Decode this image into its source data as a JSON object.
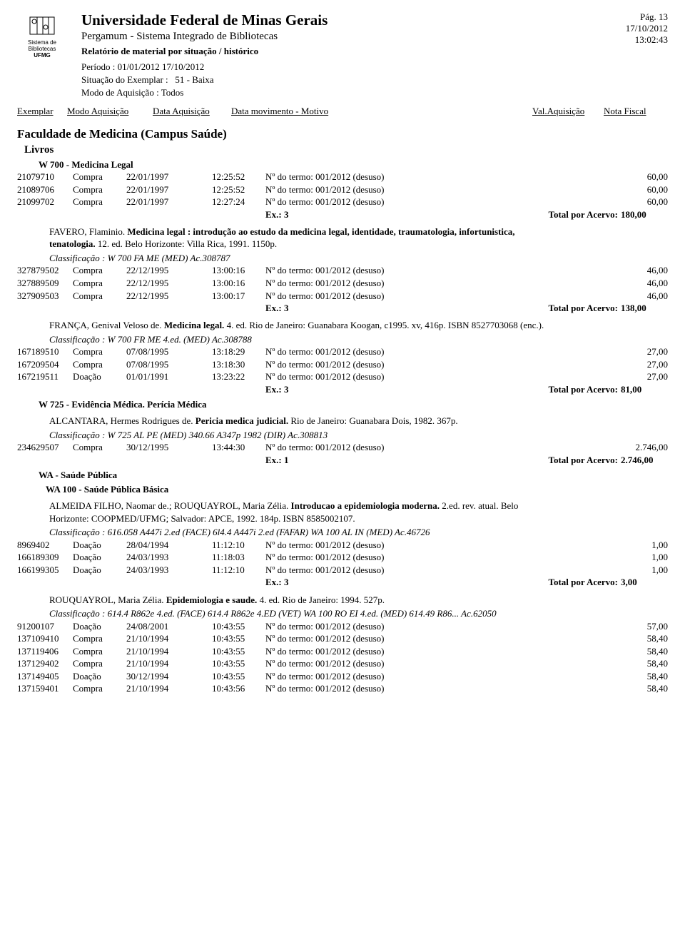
{
  "header": {
    "logo_text1": "Sistema de",
    "logo_text2": "Bibliotecas",
    "logo_text3": "UFMG",
    "institution": "Universidade Federal de Minas Gerais",
    "system": "Pergamum - Sistema Integrado de Bibliotecas",
    "report_title": "Relatório de material por situação / histórico",
    "period_label": "Período :",
    "period_value": "01/01/2012  17/10/2012",
    "situation_label": "Situação do Exemplar :",
    "situation_value": "51 - Baixa",
    "mode_label": "Modo de Aquisição :",
    "mode_value": "Todos",
    "page": "Pág. 13",
    "date": "17/10/2012",
    "time": "13:02:43"
  },
  "columns": {
    "exemplar": "Exemplar",
    "modo": "Modo Aquisição",
    "data_aq": "Data Aquisição",
    "motivo": "Data movimento - Motivo",
    "val": "Val.Aquisição",
    "nf": "Nota Fiscal"
  },
  "faculty": "Faculdade de Medicina (Campus Saúde)",
  "type_section": "Livros",
  "class1": {
    "heading": "W 700 - Medicina Legal",
    "rows": [
      {
        "ex": "21079710",
        "modo": "Compra",
        "data": "22/01/1997",
        "time": "12:25:52",
        "motivo": "Nº do termo: 001/2012 (desuso)",
        "val": "60,00"
      },
      {
        "ex": "21089706",
        "modo": "Compra",
        "data": "22/01/1997",
        "time": "12:25:52",
        "motivo": "Nº do termo: 001/2012 (desuso)",
        "val": "60,00"
      },
      {
        "ex": "21099702",
        "modo": "Compra",
        "data": "22/01/1997",
        "time": "12:27:24",
        "motivo": "Nº do termo: 001/2012 (desuso)",
        "val": "60,00"
      }
    ],
    "total_ex": "Ex.: 3",
    "total_label": "Total por Acervo:",
    "total_val": "180,00",
    "book_author": "FAVERO, Flaminio. ",
    "book_title": "Medicina legal : introdução ao estudo da medicina legal, identidade, traumatologia, infortunistica, tenatologia.",
    "book_rest": "    12. ed. Belo Horizonte: Villa Rica, 1991. 1150p.",
    "classif": "Classificação : W 700 FA ME (MED)  Ac.308787",
    "rows2": [
      {
        "ex": "327879502",
        "modo": "Compra",
        "data": "22/12/1995",
        "time": "13:00:16",
        "motivo": "Nº do termo: 001/2012 (desuso)",
        "val": "46,00"
      },
      {
        "ex": "327889509",
        "modo": "Compra",
        "data": "22/12/1995",
        "time": "13:00:16",
        "motivo": "Nº do termo: 001/2012 (desuso)",
        "val": "46,00"
      },
      {
        "ex": "327909503",
        "modo": "Compra",
        "data": "22/12/1995",
        "time": "13:00:17",
        "motivo": "Nº do termo: 001/2012 (desuso)",
        "val": "46,00"
      }
    ],
    "total2_ex": "Ex.: 3",
    "total2_label": "Total por Acervo:",
    "total2_val": "138,00",
    "book2_author": "FRANÇA, Genival Veloso de. ",
    "book2_title": "Medicina legal.",
    "book2_rest": "    4. ed. Rio de Janeiro: Guanabara Koogan, c1995. xv, 416p.    ISBN 8527703068 (enc.).",
    "classif2": "Classificação : W 700 FR ME 4.ed. (MED)  Ac.308788",
    "rows3": [
      {
        "ex": "167189510",
        "modo": "Compra",
        "data": "07/08/1995",
        "time": "13:18:29",
        "motivo": "Nº do termo: 001/2012 (desuso)",
        "val": "27,00"
      },
      {
        "ex": "167209504",
        "modo": "Compra",
        "data": "07/08/1995",
        "time": "13:18:30",
        "motivo": "Nº do termo: 001/2012 (desuso)",
        "val": "27,00"
      },
      {
        "ex": "167219511",
        "modo": "Doação",
        "data": "01/01/1991",
        "time": "13:23:22",
        "motivo": "Nº do termo: 001/2012 (desuso)",
        "val": "27,00"
      }
    ],
    "total3_ex": "Ex.: 3",
    "total3_label": "Total por Acervo:",
    "total3_val": "81,00"
  },
  "class2": {
    "heading": "W 725 - Evidência Médica. Perícia Médica",
    "book_author": "ALCANTARA, Hermes Rodrigues de. ",
    "book_title": "Pericia medica judicial.",
    "book_rest": "      Rio de Janeiro: Guanabara Dois, 1982. 367p.",
    "classif": "Classificação : W 725 AL PE (MED) 340.66 A347p 1982 (DIR)  Ac.308813",
    "rows": [
      {
        "ex": "234629507",
        "modo": "Compra",
        "data": "30/12/1995",
        "time": "13:44:30",
        "motivo": "Nº do termo: 001/2012 (desuso)",
        "val": "2.746,00"
      }
    ],
    "total_ex": "Ex.: 1",
    "total_label": "Total por Acervo:",
    "total_val": "2.746,00"
  },
  "class3": {
    "heading": "WA - Saúde Pública",
    "sub_heading": "WA 100 - Saúde Pública Básica",
    "book_author": "ALMEIDA FILHO, Naomar de.; ROUQUAYROL, Maria Zélia. ",
    "book_title": "Introducao a epidemiologia moderna.",
    "book_rest": "    2.ed. rev. atual. Belo Horizonte: COOPMED/UFMG; Salvador: APCE, 1992. 184p.    ISBN 8585002107.",
    "classif": "Classificação : 616.058 A447i 2.ed (FACE) 6l4.4 A447i 2.ed (FAFAR) WA 100 AL IN (MED)  Ac.46726",
    "rows": [
      {
        "ex": "8969402",
        "modo": "Doação",
        "data": "28/04/1994",
        "time": "11:12:10",
        "motivo": "Nº do termo: 001/2012 (desuso)",
        "val": "1,00"
      },
      {
        "ex": "166189309",
        "modo": "Doação",
        "data": "24/03/1993",
        "time": "11:18:03",
        "motivo": "Nº do termo: 001/2012 (desuso)",
        "val": "1,00"
      },
      {
        "ex": "166199305",
        "modo": "Doação",
        "data": "24/03/1993",
        "time": "11:12:10",
        "motivo": "Nº do termo: 001/2012 (desuso)",
        "val": "1,00"
      }
    ],
    "total_ex": "Ex.: 3",
    "total_label": "Total por Acervo:",
    "total_val": "3,00",
    "book2_author": "ROUQUAYROL, Maria Zélia. ",
    "book2_title": "Epidemiologia e saude.",
    "book2_rest": "    4. ed. Rio de Janeiro: 1994. 527p.",
    "classif2": "Classificação : 614.4 R862e 4.ed. (FACE) 614.4 R862e 4.ED (VET) WA 100 RO EI 4.ed. (MED) 614.49 R86... Ac.62050",
    "rows2": [
      {
        "ex": "91200107",
        "modo": "Doação",
        "data": "24/08/2001",
        "time": "10:43:55",
        "motivo": "Nº do termo: 001/2012 (desuso)",
        "val": "57,00"
      },
      {
        "ex": "137109410",
        "modo": "Compra",
        "data": "21/10/1994",
        "time": "10:43:55",
        "motivo": "Nº do termo: 001/2012 (desuso)",
        "val": "58,40"
      },
      {
        "ex": "137119406",
        "modo": "Compra",
        "data": "21/10/1994",
        "time": "10:43:55",
        "motivo": "Nº do termo: 001/2012 (desuso)",
        "val": "58,40"
      },
      {
        "ex": "137129402",
        "modo": "Compra",
        "data": "21/10/1994",
        "time": "10:43:55",
        "motivo": "Nº do termo: 001/2012 (desuso)",
        "val": "58,40"
      },
      {
        "ex": "137149405",
        "modo": "Doação",
        "data": "30/12/1994",
        "time": "10:43:55",
        "motivo": "Nº do termo: 001/2012 (desuso)",
        "val": "58,40"
      },
      {
        "ex": "137159401",
        "modo": "Compra",
        "data": "21/10/1994",
        "time": "10:43:56",
        "motivo": "Nº do termo: 001/2012 (desuso)",
        "val": "58,40"
      }
    ]
  }
}
